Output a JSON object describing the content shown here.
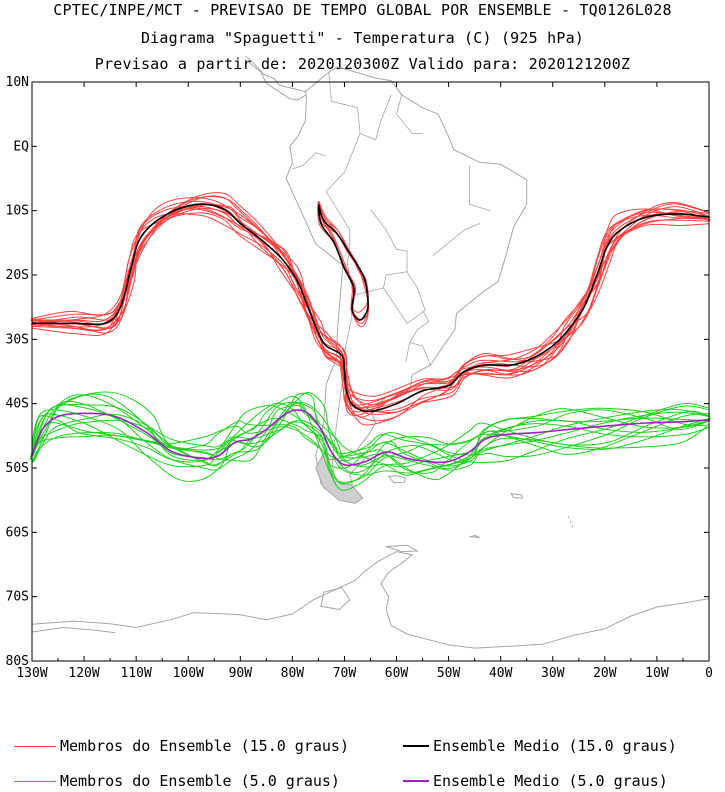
{
  "header": {
    "line1": "CPTEC/INPE/MCT - PREVISAO DE TEMPO GLOBAL POR ENSEMBLE - TQ0126L028",
    "line2": "Diagrama \"Spaguetti\" - Temperatura (C) (925 hPa)",
    "line3": "Previsao a partir de: 2020120300Z  Valido para: 2020121200Z"
  },
  "map": {
    "lat_labels": [
      "10N",
      "EQ",
      "10S",
      "20S",
      "30S",
      "40S",
      "50S",
      "60S",
      "70S",
      "80S"
    ],
    "lon_labels": [
      "130W",
      "120W",
      "110W",
      "100W",
      "90W",
      "80W",
      "70W",
      "60W",
      "50W",
      "40W",
      "30W",
      "20W",
      "10W",
      "0"
    ],
    "extent": {
      "lon": [
        -130,
        0
      ],
      "lat": [
        -80,
        10
      ]
    }
  },
  "colors": {
    "members_15": "#ff4040",
    "mean_15": "#000000",
    "members_5": "#1ed21e",
    "mean_5": "#a020c8",
    "coast": "#a6a6a6"
  },
  "legend": {
    "members_15": "Membros do Ensemble (15.0 graus)",
    "mean_15": "Ensemble Medio (15.0 graus)",
    "members_5": "Membros do Ensemble (5.0 graus)",
    "mean_5": "Ensemble Medio (5.0 graus)"
  }
}
